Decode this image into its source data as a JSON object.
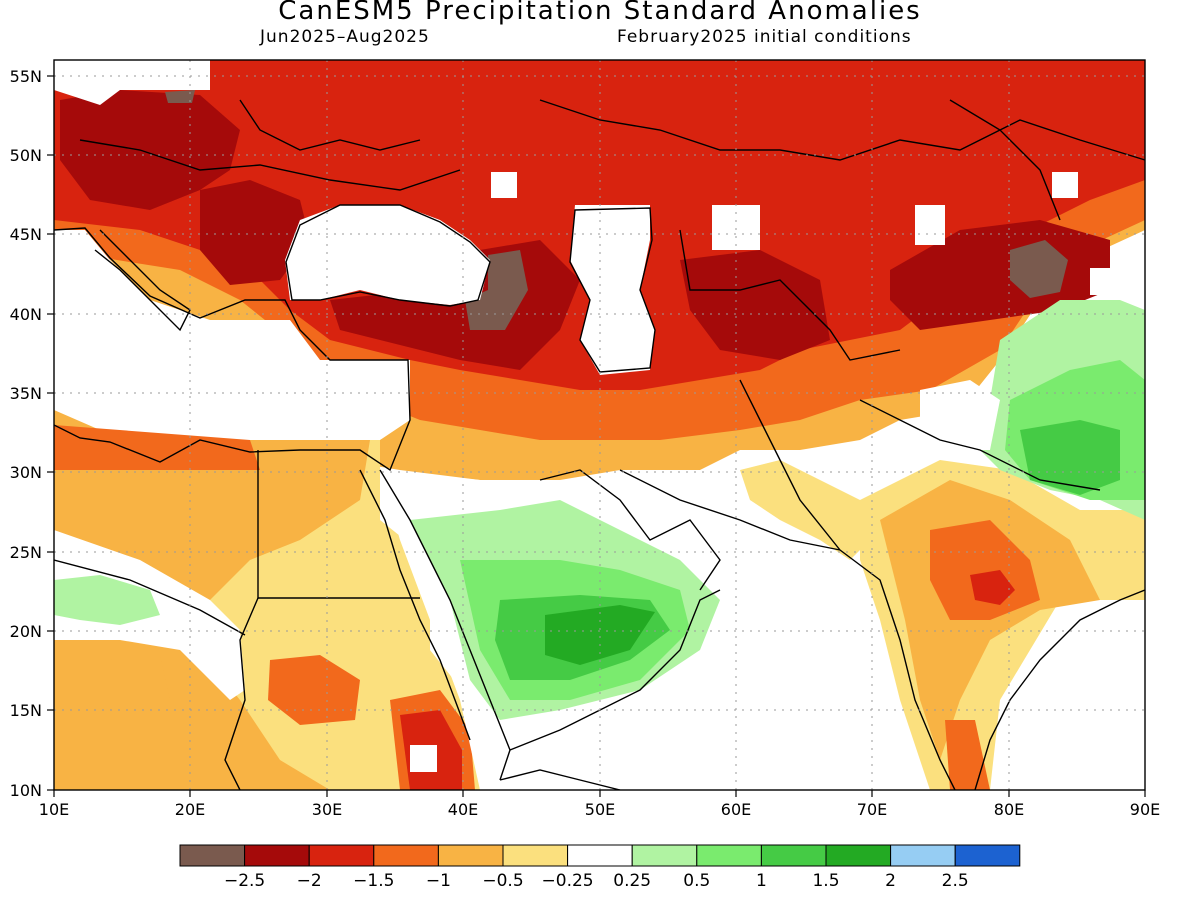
{
  "title": "CanESM5 Precipitation Standard Anomalies",
  "period": "Jun2025–Aug2025",
  "init": "February2025 initial conditions",
  "x_ticks": [
    "10E",
    "20E",
    "30E",
    "40E",
    "50E",
    "60E",
    "70E",
    "80E",
    "90E"
  ],
  "y_ticks": [
    "55N",
    "50N",
    "45N",
    "40N",
    "35N",
    "30N",
    "25N",
    "20N",
    "15N",
    "10N"
  ],
  "legend": {
    "colors": [
      "#7a5a4e",
      "#a50a0a",
      "#d8230f",
      "#f2691c",
      "#f8b344",
      "#fbe07e",
      "#ffffff",
      "#b0f3a2",
      "#7aeb6e",
      "#45cb45",
      "#23aa23",
      "#96cdf3",
      "#1c62d1"
    ],
    "labels": [
      "−2.5",
      "−2",
      "−1.5",
      "−1",
      "−0.5",
      "−0.25",
      "0.25",
      "0.5",
      "1",
      "1.5",
      "2",
      "2.5"
    ]
  },
  "colors": {
    "land_outline": "#000000",
    "grid": "#9a9a9a"
  }
}
